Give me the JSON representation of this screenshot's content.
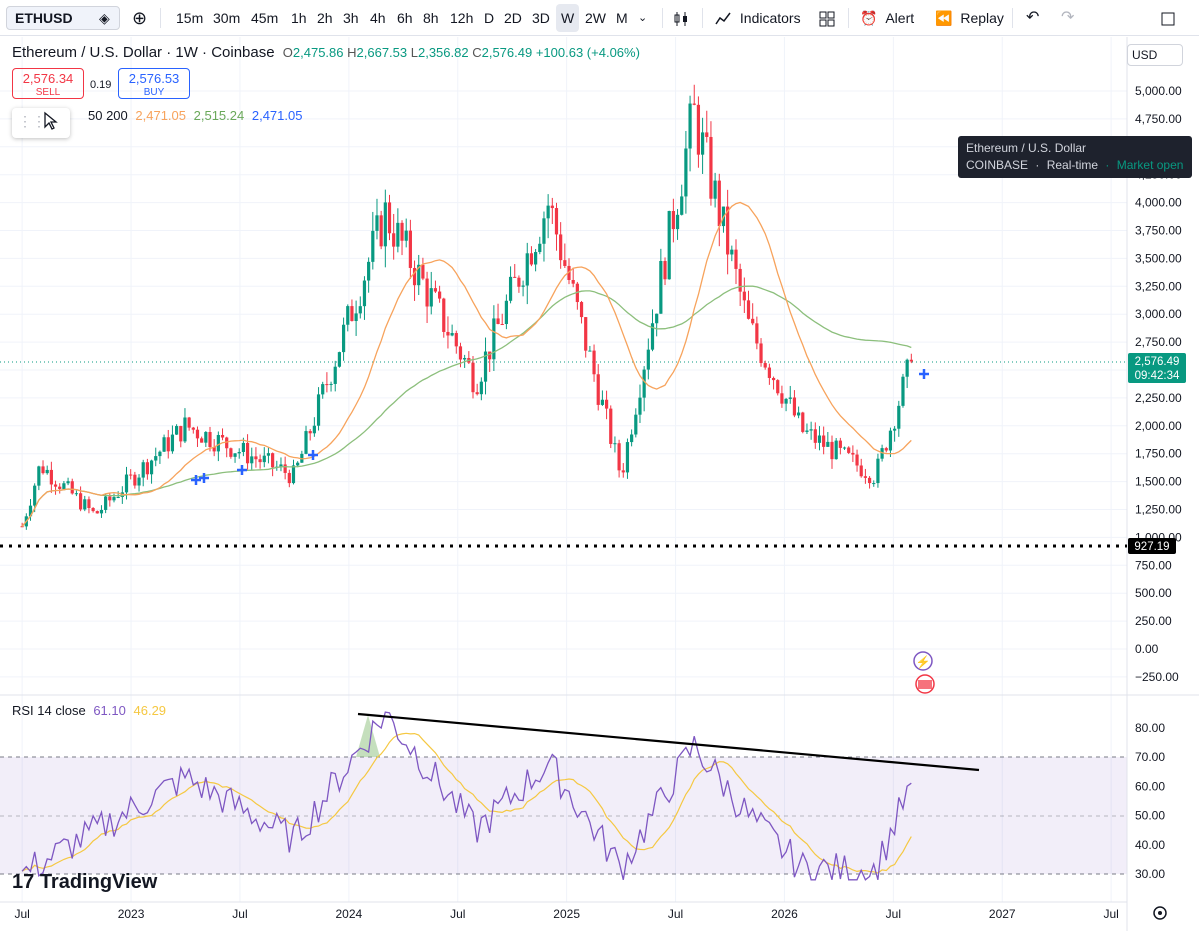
{
  "toolbar": {
    "symbol": "ETHUSD",
    "intervals": [
      "15m",
      "30m",
      "45m",
      "1h",
      "2h",
      "3h",
      "4h",
      "6h",
      "8h",
      "12h",
      "D",
      "2D",
      "3D",
      "W",
      "2W",
      "M"
    ],
    "active_interval": "W",
    "indicators_label": "Indicators",
    "alert_label": "Alert",
    "replay_label": "Replay"
  },
  "legend": {
    "title": "Ethereum / U.S. Dollar · 1W · Coinbase",
    "open_label": "O",
    "open": "2,475.86",
    "high_label": "H",
    "high": "2,667.53",
    "low_label": "L",
    "low": "2,356.82",
    "close_label": "C",
    "close": "2,576.49",
    "change": "+100.63 (+4.06%)",
    "sell_price": "2,576.34",
    "sell_label": "SELL",
    "buy_price": "2,576.53",
    "buy_label": "BUY",
    "spread": "0.19",
    "ma_params": "50 200",
    "ma_values": [
      "2,471.05",
      "2,515.24",
      "2,471.05"
    ]
  },
  "tooltip": {
    "line1": "Ethereum / U.S. Dollar",
    "exchange": "COINBASE",
    "realtime": "Real-time",
    "market": "Market open"
  },
  "price_axis": {
    "currency": "USD",
    "ticks": [
      "5,000.00",
      "4,750.00",
      "4,500.00",
      "4,250.00",
      "4,000.00",
      "3,750.00",
      "3,500.00",
      "3,250.00",
      "3,000.00",
      "2,750.00",
      "2,500.00",
      "2,250.00",
      "2,000.00",
      "1,750.00",
      "1,500.00",
      "1,250.00",
      "1,000.00",
      "750.00",
      "500.00",
      "250.00",
      "0.00",
      "−250.00"
    ],
    "current_price": "2,576.49",
    "countdown": "09:42:34",
    "horizontal_line_label": "927.19"
  },
  "rsi": {
    "label": "RSI 14 close",
    "value": "61.10",
    "ma_value": "46.29",
    "ticks": [
      "80.00",
      "70.00",
      "60.00",
      "50.00",
      "40.00",
      "30.00"
    ]
  },
  "time_axis": {
    "labels": [
      "Jul",
      "2023",
      "Jul",
      "2024",
      "Jul",
      "2025",
      "Jul",
      "2026",
      "Jul",
      "2027",
      "Jul"
    ]
  },
  "colors": {
    "up": "#089981",
    "down": "#f23645",
    "ma50": "#f7a35c",
    "ma200": "#8cbf7c",
    "rsi": "#7e57c2",
    "rsi_ma": "#f5c842",
    "accent": "#2962ff"
  },
  "branding": "TradingView",
  "chart_data": {
    "type": "candlestick",
    "title": "Ethereum / U.S. Dollar · 1W · Coinbase",
    "y_range": [
      -300,
      5100
    ],
    "last_close": 2576.49,
    "horizontal_line": 927.19,
    "price_path_anchors": [
      {
        "x": "2022-07",
        "y": 1100
      },
      {
        "x": "2022-08",
        "y": 1650
      },
      {
        "x": "2022-11",
        "y": 1200
      },
      {
        "x": "2023-04",
        "y": 2000
      },
      {
        "x": "2023-10",
        "y": 1550
      },
      {
        "x": "2024-03",
        "y": 3900
      },
      {
        "x": "2024-08",
        "y": 2400
      },
      {
        "x": "2024-12",
        "y": 4000
      },
      {
        "x": "2025-04",
        "y": 1550
      },
      {
        "x": "2025-08",
        "y": 4800
      },
      {
        "x": "2025-11",
        "y": 2900
      },
      {
        "x": "2026-02",
        "y": 1950
      },
      {
        "x": "2026-06",
        "y": 1550
      },
      {
        "x": "2026-08",
        "y": 2576
      }
    ],
    "rsi_anchors": [
      {
        "x": "2022-07",
        "y": 30
      },
      {
        "x": "2023-04",
        "y": 63
      },
      {
        "x": "2023-10",
        "y": 42
      },
      {
        "x": "2024-03",
        "y": 85
      },
      {
        "x": "2024-08",
        "y": 45
      },
      {
        "x": "2024-12",
        "y": 68
      },
      {
        "x": "2025-04",
        "y": 32
      },
      {
        "x": "2025-08",
        "y": 74
      },
      {
        "x": "2025-11",
        "y": 50
      },
      {
        "x": "2026-02",
        "y": 32
      },
      {
        "x": "2026-06",
        "y": 31
      },
      {
        "x": "2026-08",
        "y": 61
      }
    ],
    "rsi_trendline": {
      "from": {
        "x": "2024-03",
        "y": 85
      },
      "to": {
        "x": "2026-12",
        "y": 67
      }
    }
  }
}
